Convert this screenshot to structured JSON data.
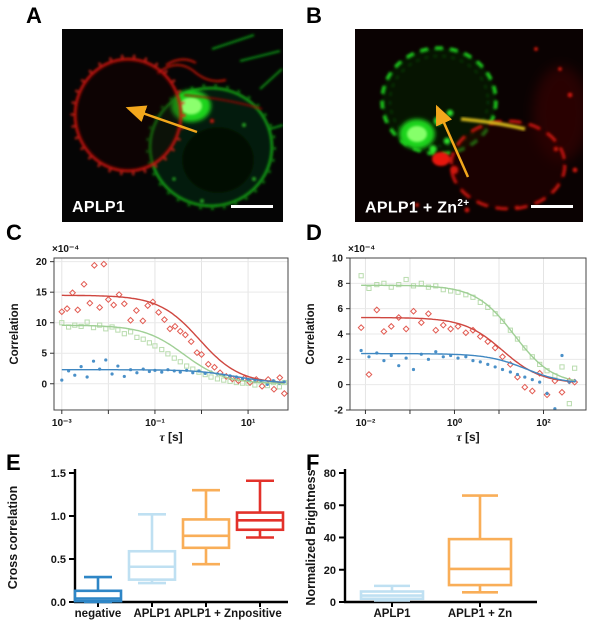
{
  "figure": {
    "panels": {
      "A": {
        "label": "A",
        "caption": "APLP1",
        "colors": {
          "membrane_red": "#c41208",
          "membrane_green": "#18b418",
          "nucleolus_green": "#2ce02c",
          "arrow": "#f2a71c",
          "scalebar": "#ffffff"
        }
      },
      "B": {
        "label": "B",
        "caption": "APLP1 + Zn",
        "caption_sup": "2+",
        "colors": {
          "membrane_red": "#c01208",
          "membrane_green": "#1cc41c",
          "junction_yellow": "#d4b81c",
          "arrow": "#f2a71c",
          "scalebar": "#ffffff"
        }
      },
      "C": {
        "label": "C"
      },
      "D": {
        "label": "D"
      },
      "E": {
        "label": "E"
      },
      "F": {
        "label": "F"
      }
    }
  },
  "chart_data": [
    {
      "id": "C",
      "type": "scatter",
      "title": "",
      "xlabel_sym": "τ",
      "xlabel_unit": " [s]",
      "ylabel": "Correlation",
      "y_exponent_label": "×10⁻⁴",
      "xscale": "log",
      "xlim": [
        0.00068,
        72
      ],
      "ylim": [
        -4.3,
        20.6
      ],
      "xticks": [
        0.001,
        0.1,
        10
      ],
      "xtick_labels": [
        "10⁻³",
        "10⁻¹",
        "10¹"
      ],
      "yticks": [
        0,
        5,
        10,
        15,
        20
      ],
      "grid": true,
      "legend": "none",
      "series": [
        {
          "name": "green-autocorrelation",
          "marker": "square",
          "marker_color": "#b9dcae",
          "line_color": "#9fcf95",
          "fit": {
            "amplitude": 9.6,
            "tau": 0.42,
            "offset": 0
          },
          "points": [
            [
              0.001,
              10.0
            ],
            [
              0.0014,
              9.3
            ],
            [
              0.0019,
              9.6
            ],
            [
              0.0026,
              9.4
            ],
            [
              0.0035,
              10.1
            ],
            [
              0.0048,
              9.2
            ],
            [
              0.0065,
              9.6
            ],
            [
              0.0088,
              9.0
            ],
            [
              0.012,
              9.3
            ],
            [
              0.016,
              8.8
            ],
            [
              0.022,
              8.2
            ],
            [
              0.03,
              8.5
            ],
            [
              0.041,
              7.6
            ],
            [
              0.056,
              7.3
            ],
            [
              0.076,
              6.7
            ],
            [
              0.1,
              6.2
            ],
            [
              0.14,
              5.6
            ],
            [
              0.19,
              4.9
            ],
            [
              0.26,
              4.2
            ],
            [
              0.35,
              3.6
            ],
            [
              0.48,
              2.9
            ],
            [
              0.65,
              2.4
            ],
            [
              0.88,
              1.9
            ],
            [
              1.2,
              1.5
            ],
            [
              1.6,
              1.1
            ],
            [
              2.2,
              0.8
            ],
            [
              3.0,
              0.6
            ],
            [
              4.1,
              0.4
            ],
            [
              5.6,
              0.2
            ],
            [
              7.6,
              0.1
            ],
            [
              10,
              0.1
            ],
            [
              14,
              -0.2
            ],
            [
              19,
              0.3
            ],
            [
              26,
              -0.3
            ],
            [
              35,
              0.2
            ],
            [
              47,
              -0.5
            ],
            [
              60,
              0.2
            ]
          ]
        },
        {
          "name": "red-autocorrelation",
          "marker": "diamond",
          "marker_color": "#e25b52",
          "line_color": "#cf4740",
          "fit": {
            "amplitude": 14.5,
            "tau": 0.9,
            "offset": 0
          },
          "points": [
            [
              0.001,
              11.8
            ],
            [
              0.0013,
              12.3
            ],
            [
              0.0017,
              14.9
            ],
            [
              0.0022,
              12.1
            ],
            [
              0.003,
              16.3
            ],
            [
              0.004,
              13.2
            ],
            [
              0.005,
              19.4
            ],
            [
              0.0065,
              12.5
            ],
            [
              0.008,
              19.6
            ],
            [
              0.01,
              13.8
            ],
            [
              0.013,
              12.9
            ],
            [
              0.017,
              14.6
            ],
            [
              0.022,
              13.1
            ],
            [
              0.03,
              10.4
            ],
            [
              0.04,
              12.0
            ],
            [
              0.055,
              10.3
            ],
            [
              0.07,
              12.8
            ],
            [
              0.09,
              13.4
            ],
            [
              0.12,
              11.7
            ],
            [
              0.16,
              10.5
            ],
            [
              0.21,
              9.0
            ],
            [
              0.27,
              9.4
            ],
            [
              0.35,
              8.6
            ],
            [
              0.45,
              8.0
            ],
            [
              0.6,
              6.9
            ],
            [
              0.8,
              5.1
            ],
            [
              1.0,
              4.8
            ],
            [
              1.4,
              3.2
            ],
            [
              1.9,
              2.7
            ],
            [
              2.5,
              1.8
            ],
            [
              3.4,
              1.2
            ],
            [
              4.6,
              0.8
            ],
            [
              6.2,
              0.5
            ],
            [
              8.4,
              0.9
            ],
            [
              11,
              0.2
            ],
            [
              15,
              0.7
            ],
            [
              20,
              -0.4
            ],
            [
              27,
              0.7
            ],
            [
              36,
              -0.9
            ],
            [
              48,
              1.0
            ],
            [
              60,
              -1.6
            ]
          ]
        },
        {
          "name": "blue-cross-correlation",
          "marker": "dot",
          "marker_color": "#4a90c8",
          "line_color": "#3f87c1",
          "fit": {
            "amplitude": 2.25,
            "tau": 5.5,
            "offset": 0.05
          },
          "points": [
            [
              0.001,
              0.6
            ],
            [
              0.0014,
              2.1
            ],
            [
              0.0019,
              1.4
            ],
            [
              0.0026,
              2.8
            ],
            [
              0.0035,
              1.1
            ],
            [
              0.0048,
              3.7
            ],
            [
              0.0065,
              2.4
            ],
            [
              0.0088,
              3.9
            ],
            [
              0.012,
              1.6
            ],
            [
              0.016,
              2.9
            ],
            [
              0.022,
              1.2
            ],
            [
              0.03,
              2.3
            ],
            [
              0.041,
              1.8
            ],
            [
              0.056,
              2.4
            ],
            [
              0.076,
              2.0
            ],
            [
              0.1,
              2.2
            ],
            [
              0.14,
              1.9
            ],
            [
              0.19,
              2.3
            ],
            [
              0.26,
              2.1
            ],
            [
              0.35,
              1.9
            ],
            [
              0.48,
              2.2
            ],
            [
              0.65,
              1.8
            ],
            [
              0.88,
              2.1
            ],
            [
              1.2,
              1.7
            ],
            [
              1.6,
              1.9
            ],
            [
              2.2,
              1.6
            ],
            [
              3.0,
              1.4
            ],
            [
              4.1,
              1.3
            ],
            [
              5.6,
              1.1
            ],
            [
              7.6,
              0.8
            ],
            [
              10,
              0.6
            ],
            [
              14,
              0.4
            ],
            [
              19,
              0.5
            ],
            [
              26,
              -0.1
            ],
            [
              35,
              0.5
            ],
            [
              47,
              0.1
            ],
            [
              60,
              0.3
            ]
          ]
        }
      ]
    },
    {
      "id": "D",
      "type": "scatter",
      "title": "",
      "xlabel_sym": "τ",
      "xlabel_unit": " [s]",
      "ylabel": "Correlation",
      "y_exponent_label": "×10⁻⁴",
      "xscale": "log",
      "xlim": [
        0.0045,
        900
      ],
      "ylim": [
        -2,
        10
      ],
      "xticks": [
        0.01,
        1,
        100
      ],
      "xtick_labels": [
        "10⁻²",
        "10⁰",
        "10²"
      ],
      "yticks": [
        -2,
        0,
        2,
        4,
        6,
        8,
        10
      ],
      "grid": true,
      "legend": "none",
      "series": [
        {
          "name": "green-autocorrelation",
          "marker": "square",
          "marker_color": "#b9dcae",
          "line_color": "#9fcf95",
          "fit": {
            "amplitude": 7.85,
            "tau": 22,
            "offset": 0
          },
          "points": [
            [
              0.008,
              8.6
            ],
            [
              0.012,
              7.6
            ],
            [
              0.018,
              7.9
            ],
            [
              0.026,
              8.0
            ],
            [
              0.038,
              7.7
            ],
            [
              0.056,
              7.9
            ],
            [
              0.082,
              8.3
            ],
            [
              0.12,
              7.8
            ],
            [
              0.18,
              8.0
            ],
            [
              0.26,
              7.7
            ],
            [
              0.38,
              7.8
            ],
            [
              0.56,
              7.5
            ],
            [
              0.82,
              7.4
            ],
            [
              1.2,
              7.3
            ],
            [
              1.8,
              7.1
            ],
            [
              2.6,
              6.9
            ],
            [
              3.8,
              6.5
            ],
            [
              5.6,
              6.1
            ],
            [
              8.2,
              5.6
            ],
            [
              12,
              5.0
            ],
            [
              18,
              4.3
            ],
            [
              26,
              3.6
            ],
            [
              38,
              2.9
            ],
            [
              56,
              2.2
            ],
            [
              82,
              1.6
            ],
            [
              120,
              1.1
            ],
            [
              180,
              0.7
            ],
            [
              260,
              1.4
            ],
            [
              380,
              -1.5
            ],
            [
              500,
              1.3
            ]
          ]
        },
        {
          "name": "red-autocorrelation",
          "marker": "diamond",
          "marker_color": "#e25b52",
          "line_color": "#cf4740",
          "fit": {
            "amplitude": 5.2,
            "tau": 12,
            "offset": 0.1
          },
          "points": [
            [
              0.008,
              4.5
            ],
            [
              0.012,
              0.8
            ],
            [
              0.018,
              5.9
            ],
            [
              0.026,
              4.2
            ],
            [
              0.038,
              4.6
            ],
            [
              0.056,
              5.3
            ],
            [
              0.082,
              4.4
            ],
            [
              0.12,
              5.8
            ],
            [
              0.18,
              4.9
            ],
            [
              0.26,
              5.6
            ],
            [
              0.38,
              4.3
            ],
            [
              0.56,
              4.7
            ],
            [
              0.82,
              4.4
            ],
            [
              1.2,
              4.6
            ],
            [
              1.8,
              4.1
            ],
            [
              2.6,
              4.3
            ],
            [
              3.8,
              3.8
            ],
            [
              5.6,
              3.4
            ],
            [
              8.2,
              2.9
            ],
            [
              12,
              2.2
            ],
            [
              18,
              1.6
            ],
            [
              26,
              0.6
            ],
            [
              38,
              -0.2
            ],
            [
              56,
              -0.5
            ],
            [
              82,
              0.9
            ],
            [
              120,
              -0.8
            ],
            [
              180,
              0.3
            ],
            [
              260,
              -0.6
            ],
            [
              380,
              0.3
            ],
            [
              500,
              0.2
            ]
          ]
        },
        {
          "name": "blue-cross-correlation",
          "marker": "dot",
          "marker_color": "#4a90c8",
          "line_color": "#3f87c1",
          "fit": {
            "amplitude": 2.4,
            "tau": 40,
            "offset": 0.05
          },
          "points": [
            [
              0.008,
              2.7
            ],
            [
              0.012,
              2.2
            ],
            [
              0.018,
              2.5
            ],
            [
              0.026,
              1.9
            ],
            [
              0.038,
              2.3
            ],
            [
              0.056,
              1.5
            ],
            [
              0.082,
              2.1
            ],
            [
              0.12,
              1.2
            ],
            [
              0.18,
              2.4
            ],
            [
              0.26,
              2.0
            ],
            [
              0.38,
              2.6
            ],
            [
              0.56,
              2.2
            ],
            [
              0.82,
              2.3
            ],
            [
              1.2,
              2.1
            ],
            [
              1.8,
              2.2
            ],
            [
              2.6,
              1.9
            ],
            [
              3.8,
              1.8
            ],
            [
              5.6,
              1.6
            ],
            [
              8.2,
              1.4
            ],
            [
              12,
              1.2
            ],
            [
              18,
              1.0
            ],
            [
              26,
              0.8
            ],
            [
              38,
              0.6
            ],
            [
              56,
              0.4
            ],
            [
              82,
              0.2
            ],
            [
              120,
              -0.7
            ],
            [
              180,
              -1.9
            ],
            [
              260,
              2.3
            ],
            [
              380,
              0.2
            ],
            [
              500,
              0.3
            ]
          ]
        }
      ]
    },
    {
      "id": "E",
      "type": "box",
      "title": "",
      "ylabel": "Cross correlation",
      "ylim": [
        0,
        1.5
      ],
      "yticks": [
        0,
        0.5,
        1.0,
        1.5
      ],
      "ytick_labels": [
        "0.0",
        "0.5",
        "1.0",
        "1.5"
      ],
      "categories": [
        "negative",
        "APLP1",
        "APLP1 + Zn",
        "positive"
      ],
      "boxes": [
        {
          "label": "negative",
          "color": "#2e86c6",
          "min": 0.0,
          "q1": 0.01,
          "median": 0.04,
          "q3": 0.13,
          "max": 0.29
        },
        {
          "label": "APLP1",
          "color": "#bfe0f2",
          "min": 0.22,
          "q1": 0.26,
          "median": 0.41,
          "q3": 0.59,
          "max": 1.02
        },
        {
          "label": "APLP1 + Zn",
          "color": "#f9ae58",
          "min": 0.44,
          "q1": 0.63,
          "median": 0.77,
          "q3": 0.96,
          "max": 1.3
        },
        {
          "label": "positive",
          "color": "#e3312a",
          "min": 0.75,
          "q1": 0.84,
          "median": 0.95,
          "q3": 1.04,
          "max": 1.41
        }
      ]
    },
    {
      "id": "F",
      "type": "box",
      "title": "",
      "ylabel": "Normalized Brightness",
      "ylim": [
        0,
        80
      ],
      "yticks": [
        0,
        20,
        40,
        60,
        80
      ],
      "ytick_labels": [
        "0",
        "20",
        "40",
        "60",
        "80"
      ],
      "categories": [
        "APLP1",
        "APLP1 + Zn"
      ],
      "boxes": [
        {
          "label": "APLP1",
          "color": "#bfe0f2",
          "min": 1,
          "q1": 2,
          "median": 4,
          "q3": 6.5,
          "max": 10
        },
        {
          "label": "APLP1 + Zn",
          "color": "#f9ae58",
          "min": 6,
          "q1": 10.5,
          "median": 20.5,
          "q3": 39,
          "max": 66
        }
      ]
    }
  ]
}
